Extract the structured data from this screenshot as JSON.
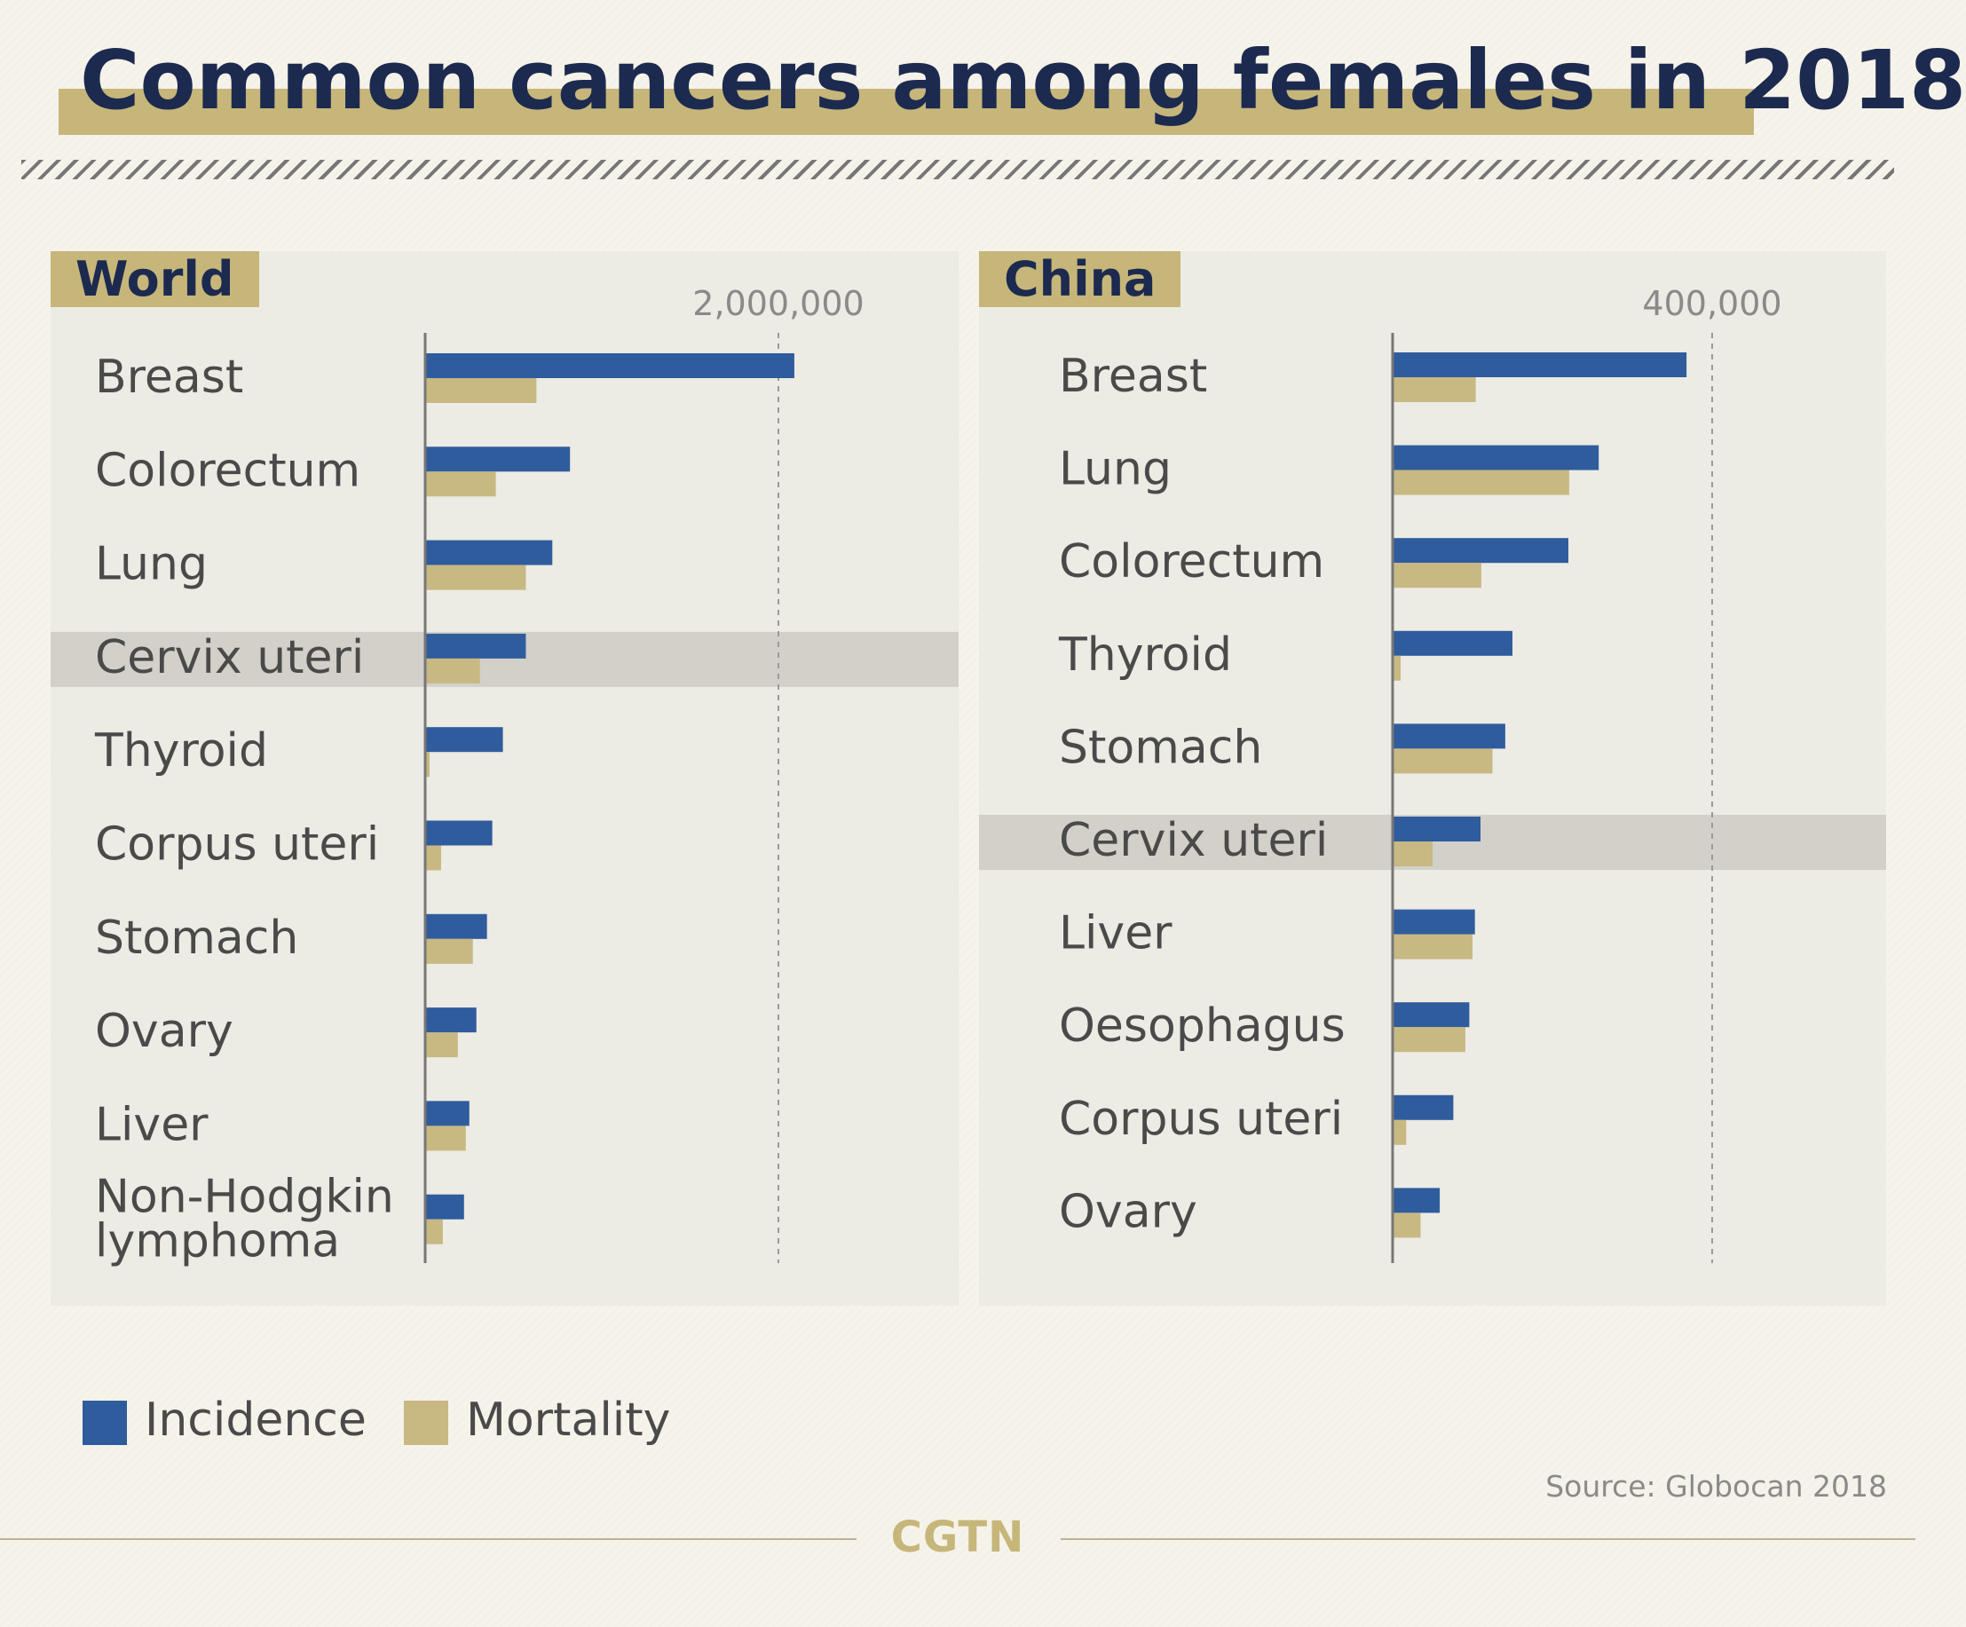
{
  "title": "Common cancers among females in 2018",
  "colors": {
    "incidence": "#2f5c9d",
    "mortality": "#c8b882",
    "highlight": "#d2d0c8",
    "accent": "#c6b67a",
    "title": "#1d2a4f"
  },
  "legend": {
    "incidence": "Incidence",
    "mortality": "Mortality"
  },
  "source": "Source: Globocan 2018",
  "brand": "CGTN",
  "chart_data": [
    {
      "type": "bar",
      "orientation": "horizontal",
      "title": "World",
      "reference_tick": 2000000,
      "reference_tick_label": "2,000,000",
      "highlight": "Cervix uteri",
      "categories": [
        "Breast",
        "Colorectum",
        "Lung",
        "Cervix uteri",
        "Thyroid",
        "Corpus uteri",
        "Stomach",
        "Ovary",
        "Liver",
        "Non-Hodgkin\nlymphoma"
      ],
      "series": [
        {
          "name": "Incidence",
          "values": [
            2090000,
            820000,
            720000,
            570000,
            440000,
            380000,
            350000,
            290000,
            250000,
            220000
          ]
        },
        {
          "name": "Mortality",
          "values": [
            630000,
            400000,
            570000,
            310000,
            25000,
            90000,
            270000,
            185000,
            230000,
            100000
          ]
        }
      ]
    },
    {
      "type": "bar",
      "orientation": "horizontal",
      "title": "China",
      "reference_tick": 400000,
      "reference_tick_label": "400,000",
      "highlight": "Cervix uteri",
      "categories": [
        "Breast",
        "Lung",
        "Colorectum",
        "Thyroid",
        "Stomach",
        "Cervix uteri",
        "Liver",
        "Oesophagus",
        "Corpus uteri",
        "Ovary"
      ],
      "series": [
        {
          "name": "Incidence",
          "values": [
            367900,
            258000,
            220000,
            150000,
            141000,
            110000,
            103000,
            96000,
            76000,
            59000
          ]
        },
        {
          "name": "Mortality",
          "values": [
            104000,
            221000,
            111000,
            10000,
            125000,
            50000,
            100000,
            91000,
            17000,
            35000
          ]
        }
      ]
    }
  ]
}
